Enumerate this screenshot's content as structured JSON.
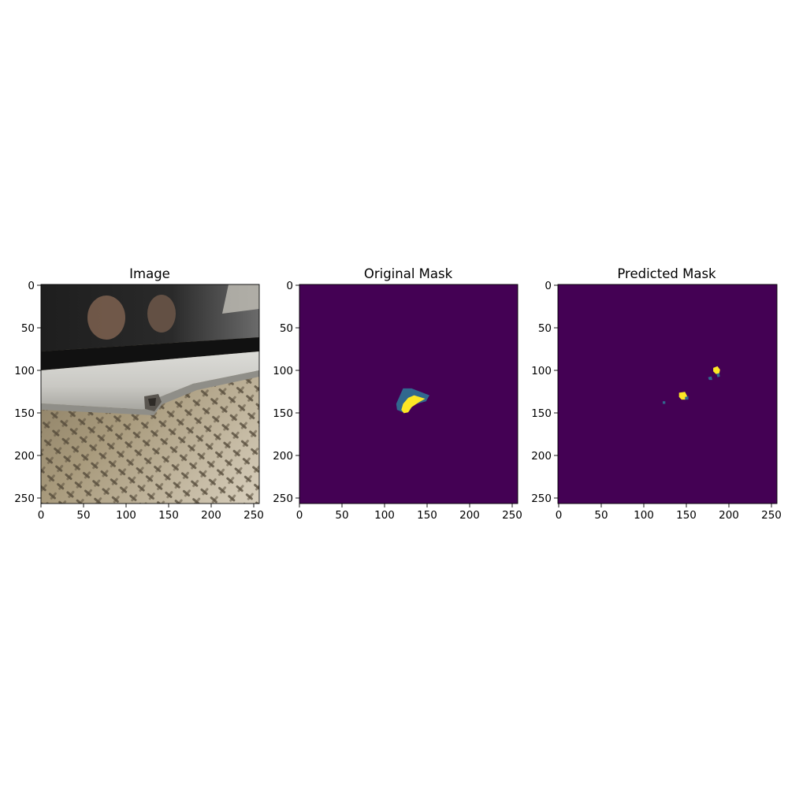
{
  "chart_data": [
    {
      "type": "image",
      "title": "Image",
      "x_ticks": [
        "0",
        "50",
        "100",
        "150",
        "200",
        "250"
      ],
      "y_ticks": [
        "0",
        "50",
        "100",
        "150",
        "200",
        "250"
      ],
      "xlim": [
        -0.5,
        255.5
      ],
      "ylim": [
        255.5,
        -0.5
      ],
      "content": "photo"
    },
    {
      "type": "heatmap",
      "title": "Original Mask",
      "x_ticks": [
        "0",
        "50",
        "100",
        "150",
        "200",
        "250"
      ],
      "y_ticks": [
        "0",
        "50",
        "100",
        "150",
        "200",
        "250"
      ],
      "xlim": [
        -0.5,
        255.5
      ],
      "ylim": [
        255.5,
        -0.5
      ],
      "colormap": "viridis",
      "background_color": "#440154",
      "regions": [
        {
          "class": 1,
          "color": "#31688e",
          "polygon": [
            [
              121,
              121
            ],
            [
              131,
              121
            ],
            [
              152,
              129
            ],
            [
              148,
              136
            ],
            [
              133,
              140
            ],
            [
              128,
              148
            ],
            [
              121,
              149
            ],
            [
              114,
              146
            ],
            [
              113,
              139
            ]
          ]
        },
        {
          "class": 2,
          "color": "#fde725",
          "polygon": [
            [
              127,
              132
            ],
            [
              134,
              129
            ],
            [
              147,
              133
            ],
            [
              140,
              137
            ],
            [
              131,
              143
            ],
            [
              127,
              149
            ],
            [
              122,
              150
            ],
            [
              119,
              146
            ],
            [
              121,
              139
            ]
          ]
        }
      ]
    },
    {
      "type": "heatmap",
      "title": "Predicted Mask",
      "x_ticks": [
        "0",
        "50",
        "100",
        "150",
        "200",
        "250"
      ],
      "y_ticks": [
        "0",
        "50",
        "100",
        "150",
        "200",
        "250"
      ],
      "xlim": [
        -0.5,
        255.5
      ],
      "ylim": [
        255.5,
        -0.5
      ],
      "colormap": "viridis",
      "background_color": "#440154",
      "regions": [
        {
          "class": 2,
          "color": "#fde725",
          "polygon": [
            [
              181,
              97
            ],
            [
              186,
              95
            ],
            [
              189,
              99
            ],
            [
              188,
              104
            ],
            [
              184,
              104
            ],
            [
              181,
              101
            ]
          ]
        },
        {
          "class": 1,
          "color": "#31688e",
          "polygon": [
            [
              185,
              104
            ],
            [
              188,
              103
            ],
            [
              189,
              107
            ],
            [
              186,
              108
            ]
          ]
        },
        {
          "class": 1,
          "color": "#31688e",
          "polygon": [
            [
              175,
              108
            ],
            [
              179,
              107
            ],
            [
              180,
              111
            ],
            [
              176,
              111
            ]
          ]
        },
        {
          "class": 2,
          "color": "#fde725",
          "polygon": [
            [
              141,
              126
            ],
            [
              148,
              125
            ],
            [
              151,
              131
            ],
            [
              149,
              134
            ],
            [
              144,
              134
            ],
            [
              141,
              131
            ]
          ]
        },
        {
          "class": 1,
          "color": "#31688e",
          "polygon": [
            [
              148,
              131
            ],
            [
              152,
              130
            ],
            [
              152,
              134
            ],
            [
              148,
              134
            ]
          ]
        },
        {
          "class": 1,
          "color": "#31688e",
          "polygon": [
            [
              122,
              136
            ],
            [
              125,
              136
            ],
            [
              125,
              139
            ],
            [
              122,
              139
            ]
          ]
        }
      ]
    }
  ]
}
